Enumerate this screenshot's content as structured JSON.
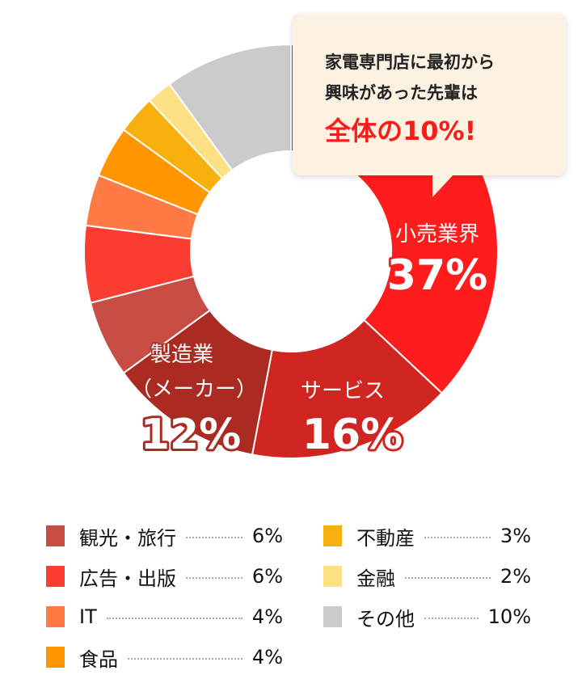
{
  "callout": {
    "line1": "家電専門店に最初から",
    "line2": "興味があった先輩は",
    "highlight": "全体の10%!"
  },
  "chart_data": {
    "type": "pie",
    "variant": "donut",
    "start": "top",
    "direction": "clockwise",
    "slices": [
      {
        "name": "小売業界",
        "value": 37,
        "label": "37%",
        "color": "#ff1c1c",
        "inner_label": true
      },
      {
        "name": "サービス",
        "value": 16,
        "label": "16%",
        "color": "#d02521",
        "inner_label": true
      },
      {
        "name": "製造業（メーカー）",
        "name_lines": [
          "製造業",
          "（メーカー）"
        ],
        "value": 12,
        "label": "12%",
        "color": "#ab2a22",
        "inner_label": true
      },
      {
        "name": "観光・旅行",
        "value": 6,
        "label": "6%",
        "color": "#c84d45"
      },
      {
        "name": "広告・出版",
        "value": 6,
        "label": "6%",
        "color": "#fb3c31"
      },
      {
        "name": "IT",
        "value": 4,
        "label": "4%",
        "color": "#ff7a45"
      },
      {
        "name": "食品",
        "value": 4,
        "label": "4%",
        "color": "#ff9600"
      },
      {
        "name": "不動産",
        "value": 3,
        "label": "3%",
        "color": "#f8b00d"
      },
      {
        "name": "金融",
        "value": 2,
        "label": "2%",
        "color": "#fde084"
      },
      {
        "name": "その他",
        "value": 10,
        "label": "10%",
        "color": "#cbcbcb"
      }
    ]
  },
  "legend": {
    "left": [
      3,
      4,
      5,
      6
    ],
    "right": [
      7,
      8,
      9
    ]
  }
}
